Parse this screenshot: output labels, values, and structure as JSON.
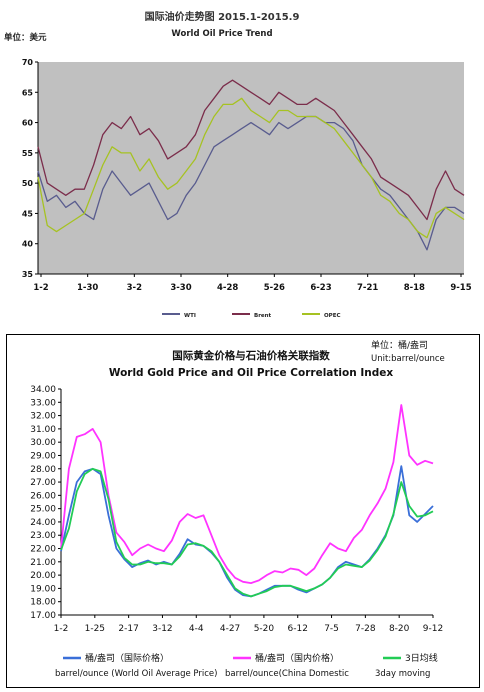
{
  "chart_data": [
    {
      "type": "line",
      "title": "国际油价走势图 2015.1-2015.9",
      "subtitle": "World Oil Price Trend",
      "unit_label": "单位：美元",
      "ylim": [
        35,
        70
      ],
      "yticks": [
        "35",
        "40",
        "45",
        "50",
        "55",
        "60",
        "65",
        "70"
      ],
      "xticks": [
        "1-2",
        "1-30",
        "3-2",
        "3-30",
        "4-28",
        "5-26",
        "6-23",
        "7-21",
        "8-18",
        "9-15"
      ],
      "grid": false,
      "legend_position": "bottom",
      "colors": {
        "background": "#c0c0c0",
        "wti": "#595c8e",
        "brent": "#7b2d4b",
        "opec": "#a6c222"
      },
      "series": [
        {
          "name": "WTI",
          "values": [
            52,
            47,
            48,
            46,
            47,
            45,
            44,
            49,
            52,
            50,
            48,
            49,
            50,
            47,
            44,
            45,
            48,
            50,
            53,
            56,
            57,
            58,
            59,
            60,
            59,
            58,
            60,
            59,
            60,
            61,
            61,
            60,
            60,
            59,
            57,
            53,
            51,
            49,
            48,
            46,
            44,
            42,
            39,
            44,
            46,
            46,
            45
          ]
        },
        {
          "name": "Brent",
          "values": [
            56,
            50,
            49,
            48,
            49,
            49,
            53,
            58,
            60,
            59,
            61,
            58,
            59,
            57,
            54,
            55,
            56,
            58,
            62,
            64,
            66,
            67,
            66,
            65,
            64,
            63,
            65,
            64,
            63,
            63,
            64,
            63,
            62,
            60,
            58,
            56,
            54,
            51,
            50,
            49,
            48,
            46,
            44,
            49,
            52,
            49,
            48
          ]
        },
        {
          "name": "OPEC",
          "values": [
            51,
            43,
            42,
            43,
            44,
            45,
            49,
            53,
            56,
            55,
            55,
            52,
            54,
            51,
            49,
            50,
            52,
            54,
            58,
            61,
            63,
            63,
            64,
            62,
            61,
            60,
            62,
            62,
            61,
            61,
            61,
            60,
            59,
            57,
            55,
            53,
            51,
            48,
            47,
            45,
            44,
            42,
            41,
            45,
            46,
            45,
            44
          ]
        }
      ]
    },
    {
      "type": "line",
      "title": "国际黄金价格与石油价格关联指数",
      "subtitle": "World Gold Price and Oil Price Correlation Index",
      "unit_label": "单位：桶/盎司",
      "unit_label_en": "Unit:barrel/ounce",
      "ylim": [
        17,
        34
      ],
      "yticks": [
        "17.00",
        "18.00",
        "19.00",
        "20.00",
        "21.00",
        "22.00",
        "23.00",
        "24.00",
        "25.00",
        "26.00",
        "27.00",
        "28.00",
        "29.00",
        "30.00",
        "31.00",
        "32.00",
        "33.00",
        "34.00"
      ],
      "xticks": [
        "1-2",
        "1-25",
        "2-17",
        "3-12",
        "4-4",
        "4-27",
        "5-20",
        "6-12",
        "7-5",
        "7-28",
        "8-20",
        "9-12"
      ],
      "grid": false,
      "legend_position": "bottom",
      "colors": {
        "intl": "#3a6fd8",
        "domestic": "#ff33ff",
        "ma3": "#22cc55"
      },
      "legend": [
        {
          "name": "桶/盎司（国际价格）",
          "sub": "barrel/ounce (World Oil Average Price)"
        },
        {
          "name": "桶/盎司（国内价格）",
          "sub": "barrel/ounce(China Domestic"
        },
        {
          "name": "3日均线",
          "sub": "3day moving"
        }
      ],
      "series": [
        {
          "name": "桶/盎司（国际价格）",
          "values": [
            21.8,
            24.5,
            27.0,
            27.8,
            28.0,
            27.6,
            24.5,
            22.0,
            21.2,
            20.6,
            20.9,
            21.1,
            20.8,
            21.0,
            20.8,
            21.6,
            22.7,
            22.3,
            22.2,
            21.7,
            21.0,
            19.8,
            18.9,
            18.5,
            18.4,
            18.6,
            18.9,
            19.2,
            19.2,
            19.2,
            18.9,
            18.7,
            19.0,
            19.3,
            19.8,
            20.6,
            21.0,
            20.8,
            20.6,
            21.2,
            22.0,
            23.0,
            24.5,
            28.2,
            24.5,
            24.0,
            24.6,
            25.2
          ]
        },
        {
          "name": "桶/盎司（国内价格）",
          "values": [
            22.0,
            28.0,
            30.4,
            30.6,
            31.0,
            30.0,
            26.0,
            23.2,
            22.5,
            21.5,
            22.0,
            22.3,
            22.0,
            21.8,
            22.6,
            24.0,
            24.6,
            24.3,
            24.5,
            23.0,
            21.5,
            20.5,
            19.8,
            19.5,
            19.4,
            19.6,
            20.0,
            20.3,
            20.2,
            20.5,
            20.4,
            20.0,
            20.5,
            21.5,
            22.4,
            22.0,
            21.8,
            22.8,
            23.4,
            24.5,
            25.4,
            26.5,
            28.5,
            32.8,
            29.0,
            28.3,
            28.6,
            28.4
          ]
        },
        {
          "name": "3日均线",
          "values": [
            21.9,
            23.5,
            26.3,
            27.6,
            28.0,
            27.8,
            25.7,
            22.5,
            21.3,
            20.8,
            20.8,
            21.0,
            20.9,
            20.9,
            20.8,
            21.4,
            22.3,
            22.4,
            22.2,
            21.8,
            21.0,
            20.0,
            19.0,
            18.6,
            18.4,
            18.6,
            18.8,
            19.1,
            19.2,
            19.2,
            19.0,
            18.8,
            19.0,
            19.3,
            19.8,
            20.5,
            20.8,
            20.7,
            20.6,
            21.1,
            21.9,
            22.9,
            24.6,
            27.0,
            25.2,
            24.4,
            24.5,
            24.8
          ]
        }
      ]
    }
  ]
}
